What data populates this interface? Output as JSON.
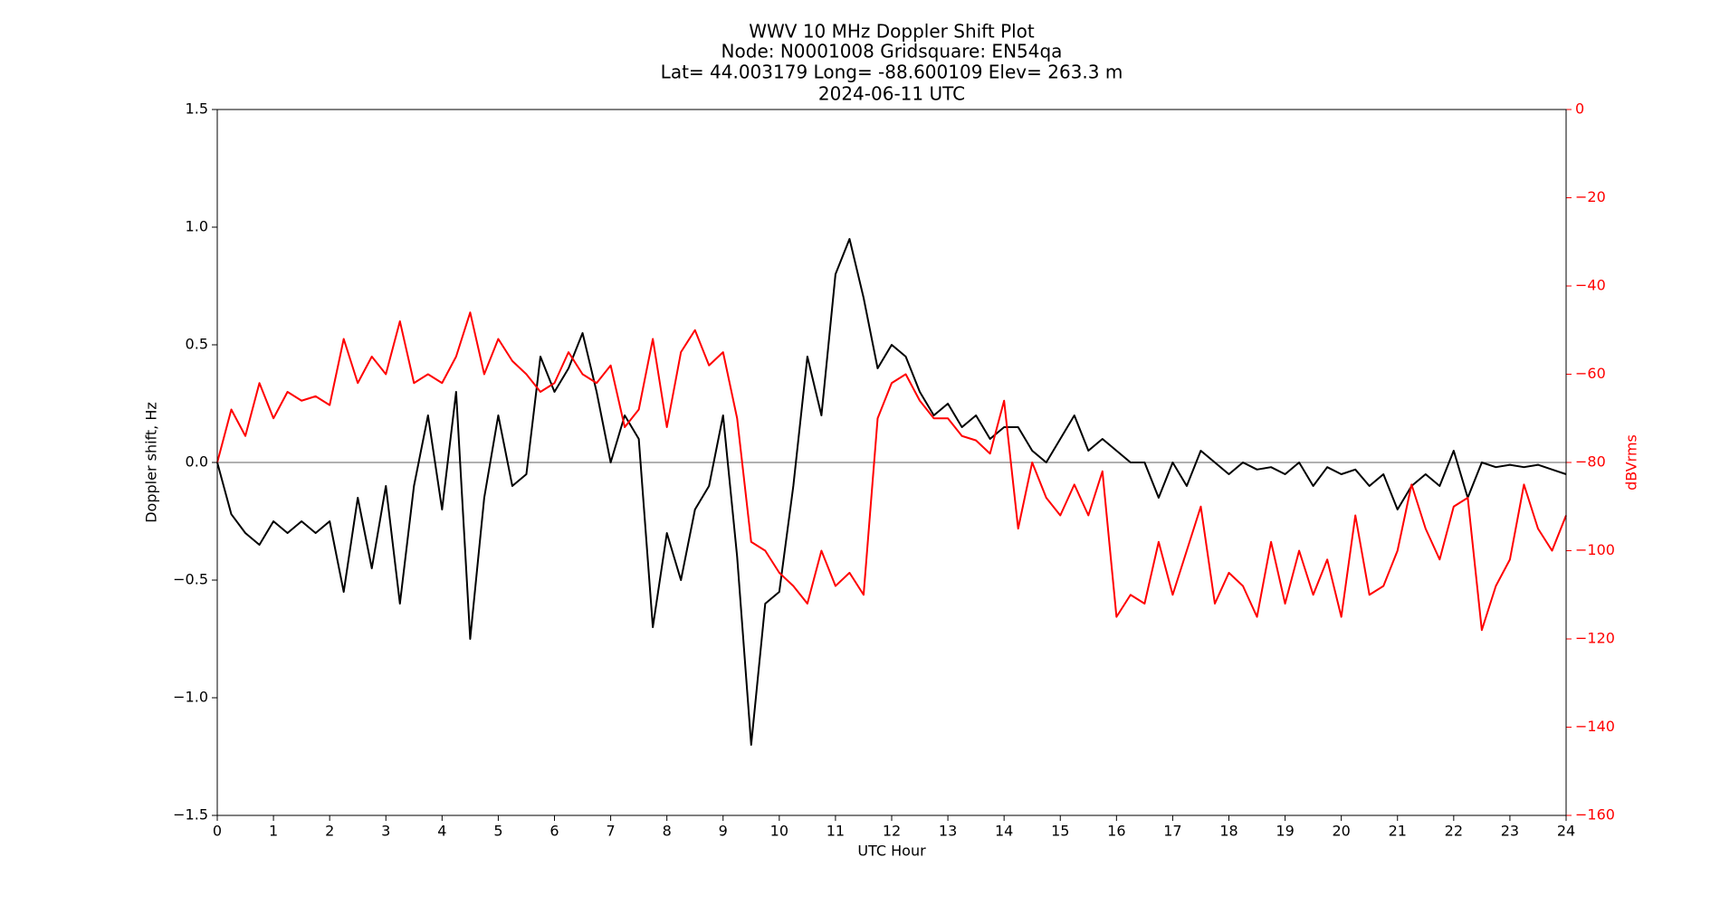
{
  "chart_data": {
    "type": "line",
    "title": [
      "WWV 10 MHz Doppler Shift Plot",
      "Node:  N0001008     Gridsquare:  EN54qa",
      "Lat= 44.003179    Long= -88.600109    Elev= 263.3 m",
      "2024-06-11  UTC"
    ],
    "x_label": "UTC Hour",
    "y_label": "Doppler shift, Hz",
    "y2_label": "dBVrms",
    "x": [
      0,
      0.25,
      0.5,
      0.75,
      1,
      1.25,
      1.5,
      1.75,
      2,
      2.25,
      2.5,
      2.75,
      3,
      3.25,
      3.5,
      3.75,
      4,
      4.25,
      4.5,
      4.75,
      5,
      5.25,
      5.5,
      5.75,
      6,
      6.25,
      6.5,
      6.75,
      7,
      7.25,
      7.5,
      7.75,
      8,
      8.25,
      8.5,
      8.75,
      9,
      9.25,
      9.5,
      9.75,
      10,
      10.25,
      10.5,
      10.75,
      11,
      11.25,
      11.5,
      11.75,
      12,
      12.25,
      12.5,
      12.75,
      13,
      13.25,
      13.5,
      13.75,
      14,
      14.25,
      14.5,
      14.75,
      15,
      15.25,
      15.5,
      15.75,
      16,
      16.25,
      16.5,
      16.75,
      17,
      17.25,
      17.5,
      17.75,
      18,
      18.25,
      18.5,
      18.75,
      19,
      19.25,
      19.5,
      19.75,
      20,
      20.25,
      20.5,
      20.75,
      21,
      21.25,
      21.5,
      21.75,
      22,
      22.25,
      22.5,
      22.75,
      23,
      23.25,
      23.5,
      23.75,
      24
    ],
    "series": [
      {
        "name": "Doppler shift",
        "color": "#000000",
        "axis": "y",
        "values": [
          0.0,
          -0.22,
          -0.3,
          -0.35,
          -0.25,
          -0.3,
          -0.25,
          -0.3,
          -0.25,
          -0.55,
          -0.15,
          -0.45,
          -0.1,
          -0.6,
          -0.1,
          0.2,
          -0.2,
          0.3,
          -0.75,
          -0.15,
          0.2,
          -0.1,
          -0.05,
          0.45,
          0.3,
          0.4,
          0.55,
          0.3,
          0.0,
          0.2,
          0.1,
          -0.7,
          -0.3,
          -0.5,
          -0.2,
          -0.1,
          0.2,
          -0.4,
          -1.2,
          -0.6,
          -0.55,
          -0.1,
          0.45,
          0.2,
          0.8,
          0.95,
          0.7,
          0.4,
          0.5,
          0.45,
          0.3,
          0.2,
          0.25,
          0.15,
          0.2,
          0.1,
          0.15,
          0.15,
          0.05,
          0.0,
          0.1,
          0.2,
          0.05,
          0.1,
          0.05,
          0.0,
          0.0,
          -0.15,
          0.0,
          -0.1,
          0.05,
          0.0,
          -0.05,
          0.0,
          -0.03,
          -0.02,
          -0.05,
          0.0,
          -0.1,
          -0.02,
          -0.05,
          -0.03,
          -0.1,
          -0.05,
          -0.2,
          -0.1,
          -0.05,
          -0.1,
          0.05,
          -0.15,
          0.0,
          -0.02,
          -0.01,
          -0.02,
          -0.01,
          -0.03,
          -0.05
        ]
      },
      {
        "name": "dBVrms",
        "color": "#ff0000",
        "axis": "y2",
        "values": [
          -80,
          -68,
          -74,
          -62,
          -70,
          -64,
          -66,
          -65,
          -67,
          -52,
          -62,
          -56,
          -60,
          -48,
          -62,
          -60,
          -62,
          -56,
          -46,
          -60,
          -52,
          -57,
          -60,
          -64,
          -62,
          -55,
          -60,
          -62,
          -58,
          -72,
          -68,
          -52,
          -72,
          -55,
          -50,
          -58,
          -55,
          -70,
          -98,
          -100,
          -105,
          -108,
          -112,
          -100,
          -108,
          -105,
          -110,
          -70,
          -62,
          -60,
          -66,
          -70,
          -70,
          -74,
          -75,
          -78,
          -66,
          -95,
          -80,
          -88,
          -92,
          -85,
          -92,
          -82,
          -115,
          -110,
          -112,
          -98,
          -110,
          -100,
          -90,
          -112,
          -105,
          -108,
          -115,
          -98,
          -112,
          -100,
          -110,
          -102,
          -115,
          -92,
          -110,
          -108,
          -100,
          -85,
          -95,
          -102,
          -90,
          -88,
          -118,
          -108,
          -102,
          -85,
          -95,
          -100,
          -92
        ]
      }
    ],
    "xlim": [
      0,
      24
    ],
    "xticks": [
      0,
      1,
      2,
      3,
      4,
      5,
      6,
      7,
      8,
      9,
      10,
      11,
      12,
      13,
      14,
      15,
      16,
      17,
      18,
      19,
      20,
      21,
      22,
      23,
      24
    ],
    "ylim": [
      -1.5,
      1.5
    ],
    "yticks": [
      {
        "value": -1.5,
        "label": "−1.5"
      },
      {
        "value": -1.0,
        "label": "−1.0"
      },
      {
        "value": -0.5,
        "label": "−0.5"
      },
      {
        "value": 0,
        "label": "0.0"
      },
      0.5,
      {
        "value": 1.0,
        "label": "1.0"
      },
      1.5
    ],
    "y2lim": [
      -160,
      0
    ],
    "y2ticks": [
      {
        "value": -160,
        "label": "−160"
      },
      {
        "value": -140,
        "label": "−140"
      },
      {
        "value": -120,
        "label": "−120"
      },
      {
        "value": -100,
        "label": "−100"
      },
      {
        "value": -80,
        "label": "−80"
      },
      {
        "value": -60,
        "label": "−60"
      },
      {
        "value": -40,
        "label": "−40"
      },
      {
        "value": -20,
        "label": "−20"
      },
      0
    ],
    "hline": 0,
    "hline_color": "#808080"
  }
}
